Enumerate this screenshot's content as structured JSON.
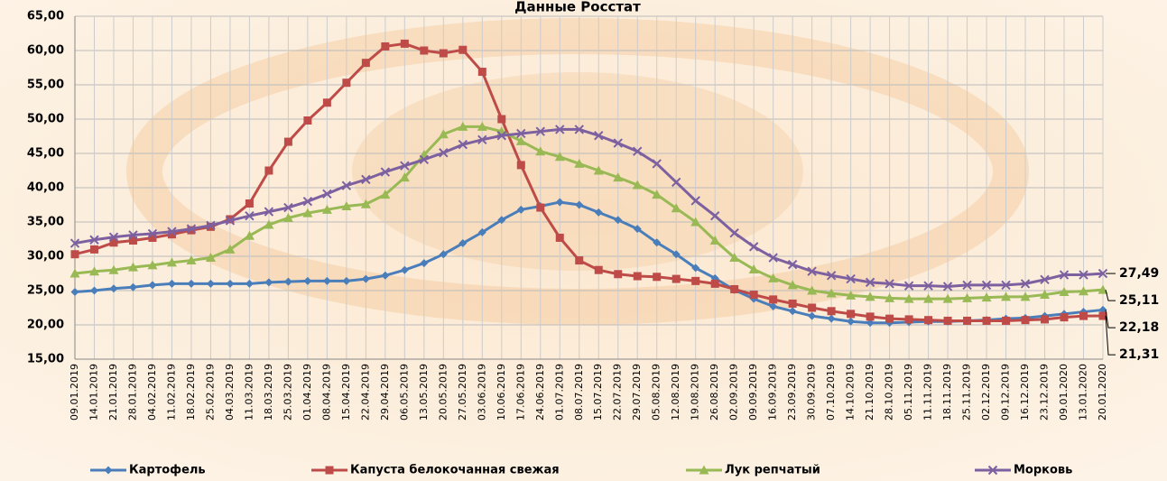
{
  "chart_data": {
    "type": "line",
    "title": "Данные Росстат",
    "categories": [
      "09.01.2019",
      "14.01.2019",
      "21.01.2019",
      "28.01.2019",
      "04.02.2019",
      "11.02.2019",
      "18.02.2019",
      "25.02.2019",
      "04.03.2019",
      "11.03.2019",
      "18.03.2019",
      "25.03.2019",
      "01.04.2019",
      "08.04.2019",
      "15.04.2019",
      "22.04.2019",
      "29.04.2019",
      "06.05.2019",
      "13.05.2019",
      "20.05.2019",
      "27.05.2019",
      "03.06.2019",
      "10.06.2019",
      "17.06.2019",
      "24.06.2019",
      "01.07.2019",
      "08.07.2019",
      "15.07.2019",
      "22.07.2019",
      "29.07.2019",
      "05.08.2019",
      "12.08.2019",
      "19.08.2019",
      "26.08.2019",
      "02.09.2019",
      "09.09.2019",
      "16.09.2019",
      "23.09.2019",
      "30.09.2019",
      "07.10.2019",
      "14.10.2019",
      "21.10.2019",
      "28.10.2019",
      "05.11.2019",
      "11.11.2019",
      "18.11.2019",
      "25.11.2019",
      "02.12.2019",
      "09.12.2019",
      "16.12.2019",
      "23.12.2019",
      "09.01.2020",
      "13.01.2020",
      "20.01.2020"
    ],
    "series": [
      {
        "name": "Картофель",
        "color": "#4a7ebb",
        "marker": "diamond",
        "values": [
          24.8,
          25.0,
          25.3,
          25.5,
          25.8,
          26.0,
          26.0,
          26.0,
          26.0,
          26.0,
          26.2,
          26.3,
          26.4,
          26.4,
          26.4,
          26.7,
          27.2,
          28.0,
          29.0,
          30.3,
          31.9,
          33.5,
          35.3,
          36.8,
          37.3,
          37.9,
          37.5,
          36.4,
          35.3,
          34.0,
          32.0,
          30.3,
          28.3,
          26.8,
          25.1,
          23.8,
          22.7,
          22.0,
          21.3,
          20.9,
          20.5,
          20.3,
          20.3,
          20.4,
          20.5,
          20.5,
          20.6,
          20.7,
          20.9,
          21.0,
          21.3,
          21.6,
          21.9,
          22.18
        ],
        "value_labels": [
          null,
          null,
          null,
          null,
          null,
          null,
          null,
          null,
          null,
          null,
          null,
          null,
          null,
          null,
          null,
          null,
          null,
          null,
          null,
          null,
          null,
          null,
          null,
          null,
          null,
          null,
          null,
          null,
          null,
          null,
          null,
          null,
          null,
          null,
          null,
          null,
          null,
          null,
          null,
          null,
          null,
          null,
          null,
          null,
          null,
          null,
          null,
          null,
          null,
          null,
          null,
          null,
          null,
          "22,18"
        ]
      },
      {
        "name": "Капуста белокочанная свежая",
        "color": "#be4b48",
        "marker": "square",
        "values": [
          30.3,
          31.0,
          32.0,
          32.3,
          32.7,
          33.2,
          33.8,
          34.3,
          35.4,
          37.7,
          42.5,
          46.7,
          49.8,
          52.4,
          55.3,
          58.2,
          60.6,
          61.0,
          60.0,
          59.6,
          60.1,
          56.9,
          50.0,
          43.3,
          37.1,
          32.7,
          29.4,
          28.0,
          27.4,
          27.1,
          27.0,
          26.7,
          26.4,
          26.0,
          25.2,
          24.4,
          23.7,
          23.1,
          22.5,
          22.0,
          21.6,
          21.2,
          20.9,
          20.8,
          20.7,
          20.6,
          20.6,
          20.6,
          20.6,
          20.7,
          20.8,
          21.1,
          21.3,
          21.31
        ],
        "value_labels": [
          null,
          null,
          null,
          null,
          null,
          null,
          null,
          null,
          null,
          null,
          null,
          null,
          null,
          null,
          null,
          null,
          null,
          null,
          null,
          null,
          null,
          null,
          null,
          null,
          null,
          null,
          null,
          null,
          null,
          null,
          null,
          null,
          null,
          null,
          null,
          null,
          null,
          null,
          null,
          null,
          null,
          null,
          null,
          null,
          null,
          null,
          null,
          null,
          null,
          null,
          null,
          null,
          null,
          "21,31"
        ]
      },
      {
        "name": "Лук репчатый",
        "color": "#98b954",
        "marker": "triangle",
        "values": [
          27.5,
          27.8,
          28.0,
          28.4,
          28.7,
          29.1,
          29.4,
          29.8,
          31.0,
          33.0,
          34.6,
          35.6,
          36.3,
          36.8,
          37.3,
          37.6,
          39.0,
          41.5,
          44.8,
          47.8,
          48.9,
          48.9,
          48.2,
          46.8,
          45.3,
          44.5,
          43.5,
          42.5,
          41.5,
          40.4,
          39.0,
          37.0,
          35.0,
          32.3,
          29.8,
          28.1,
          26.8,
          25.8,
          25.0,
          24.6,
          24.3,
          24.1,
          23.9,
          23.8,
          23.8,
          23.8,
          23.9,
          24.0,
          24.1,
          24.1,
          24.4,
          24.8,
          24.9,
          25.11
        ],
        "value_labels": [
          null,
          null,
          null,
          null,
          null,
          null,
          null,
          null,
          null,
          null,
          null,
          null,
          null,
          null,
          null,
          null,
          null,
          null,
          null,
          null,
          null,
          null,
          null,
          null,
          null,
          null,
          null,
          null,
          null,
          null,
          null,
          null,
          null,
          null,
          null,
          null,
          null,
          null,
          null,
          null,
          null,
          null,
          null,
          null,
          null,
          null,
          null,
          null,
          null,
          null,
          null,
          null,
          null,
          "25,11"
        ]
      },
      {
        "name": "Морковь",
        "color": "#7d60a0",
        "marker": "x",
        "values": [
          31.9,
          32.4,
          32.8,
          33.1,
          33.3,
          33.6,
          34.0,
          34.5,
          35.2,
          35.9,
          36.5,
          37.1,
          38.0,
          39.1,
          40.3,
          41.2,
          42.3,
          43.2,
          44.1,
          45.1,
          46.3,
          47.0,
          47.6,
          47.9,
          48.2,
          48.5,
          48.5,
          47.6,
          46.5,
          45.3,
          43.5,
          40.8,
          38.1,
          35.9,
          33.4,
          31.4,
          29.8,
          28.8,
          27.8,
          27.2,
          26.7,
          26.2,
          26.0,
          25.7,
          25.7,
          25.6,
          25.8,
          25.8,
          25.8,
          26.0,
          26.6,
          27.3,
          27.3,
          27.49
        ],
        "value_labels": [
          null,
          null,
          null,
          null,
          null,
          null,
          null,
          null,
          null,
          null,
          null,
          null,
          null,
          null,
          null,
          null,
          null,
          null,
          null,
          null,
          null,
          null,
          null,
          null,
          null,
          null,
          null,
          null,
          null,
          null,
          null,
          null,
          null,
          null,
          null,
          null,
          null,
          null,
          null,
          null,
          null,
          null,
          null,
          null,
          null,
          null,
          null,
          null,
          null,
          null,
          null,
          null,
          null,
          "27,49"
        ]
      }
    ],
    "ylim": [
      15,
      65
    ],
    "yticks": [
      {
        "value": 15,
        "label": "15,00"
      },
      {
        "value": 20,
        "label": "20,00"
      },
      {
        "value": 25,
        "label": "25,00"
      },
      {
        "value": 30,
        "label": "30,00"
      },
      {
        "value": 35,
        "label": "35,00"
      },
      {
        "value": 40,
        "label": "40,00"
      },
      {
        "value": 45,
        "label": "45,00"
      },
      {
        "value": 50,
        "label": "50,00"
      },
      {
        "value": 55,
        "label": "55,00"
      },
      {
        "value": 60,
        "label": "60,00"
      },
      {
        "value": 65,
        "label": "65,00"
      }
    ],
    "grid": true,
    "legend": "bottom"
  }
}
